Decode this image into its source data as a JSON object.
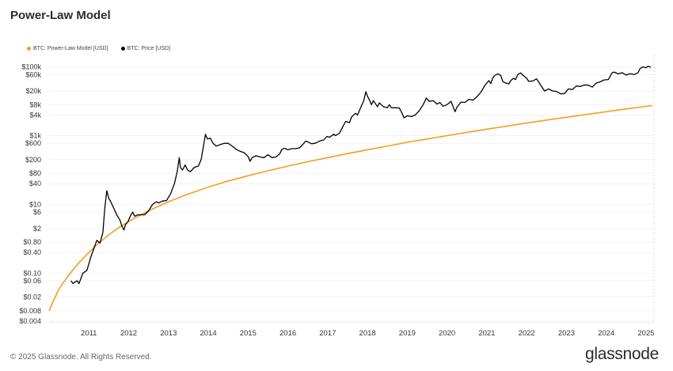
{
  "title": "Power-Law Model",
  "footer": "© 2025 Glassnode. All Rights Reserved.",
  "brand": "glassnode",
  "colors": {
    "model": "#F0A020",
    "price": "#000000",
    "grid": "#e6e6e6"
  },
  "chart_data": {
    "type": "line",
    "title": "Power-Law Model",
    "yscale": "log",
    "ylim": [
      0.004,
      150000
    ],
    "xlim": [
      2010.0,
      2025.2
    ],
    "legend": [
      {
        "name": "BTC: Power-Law Model [USD]",
        "color": "#F0A020",
        "marker": "dot"
      },
      {
        "name": "BTC: Price [USD]",
        "color": "#000000",
        "marker": "dot"
      }
    ],
    "legend_position": "top-left",
    "y_ticks": [
      {
        "v": 100000,
        "label": "$100k"
      },
      {
        "v": 60000,
        "label": "$60k"
      },
      {
        "v": 20000,
        "label": "$20k"
      },
      {
        "v": 8000,
        "label": "$8k"
      },
      {
        "v": 4000,
        "label": "$4k"
      },
      {
        "v": 1000,
        "label": "$1k"
      },
      {
        "v": 600,
        "label": "$600"
      },
      {
        "v": 200,
        "label": "$200"
      },
      {
        "v": 80,
        "label": "$80"
      },
      {
        "v": 40,
        "label": "$40"
      },
      {
        "v": 10,
        "label": "$10"
      },
      {
        "v": 6,
        "label": "$6"
      },
      {
        "v": 2,
        "label": "$2"
      },
      {
        "v": 0.8,
        "label": "$0.80"
      },
      {
        "v": 0.4,
        "label": "$0.40"
      },
      {
        "v": 0.1,
        "label": "$0.10"
      },
      {
        "v": 0.06,
        "label": "$0.06"
      },
      {
        "v": 0.02,
        "label": "$0.02"
      },
      {
        "v": 0.008,
        "label": "$0.008"
      },
      {
        "v": 0.004,
        "label": "$0.004"
      }
    ],
    "x_ticks": [
      {
        "v": 2011,
        "label": "2011"
      },
      {
        "v": 2012,
        "label": "2012"
      },
      {
        "v": 2013,
        "label": "2013"
      },
      {
        "v": 2014,
        "label": "2014"
      },
      {
        "v": 2015,
        "label": "2015"
      },
      {
        "v": 2016,
        "label": "2016"
      },
      {
        "v": 2017,
        "label": "2017"
      },
      {
        "v": 2018,
        "label": "2018"
      },
      {
        "v": 2019,
        "label": "2019"
      },
      {
        "v": 2020,
        "label": "2020"
      },
      {
        "v": 2021,
        "label": "2021"
      },
      {
        "v": 2022,
        "label": "2022"
      },
      {
        "v": 2023,
        "label": "2023"
      },
      {
        "v": 2024,
        "label": "2024"
      },
      {
        "v": 2025,
        "label": "2025"
      }
    ],
    "series": [
      {
        "name": "BTC: Power-Law Model [USD]",
        "color": "#F0A020",
        "points": [
          [
            2010.0,
            0.008
          ],
          [
            2010.1,
            0.015
          ],
          [
            2010.25,
            0.035
          ],
          [
            2010.5,
            0.09
          ],
          [
            2010.75,
            0.2
          ],
          [
            2011.0,
            0.4
          ],
          [
            2011.25,
            0.75
          ],
          [
            2011.5,
            1.3
          ],
          [
            2011.75,
            2.1
          ],
          [
            2012.0,
            3.2
          ],
          [
            2012.5,
            6.5
          ],
          [
            2013.0,
            12
          ],
          [
            2013.5,
            20
          ],
          [
            2014.0,
            32
          ],
          [
            2014.5,
            48
          ],
          [
            2015.0,
            68
          ],
          [
            2015.5,
            95
          ],
          [
            2016.0,
            130
          ],
          [
            2016.5,
            175
          ],
          [
            2017.0,
            230
          ],
          [
            2017.5,
            300
          ],
          [
            2018.0,
            390
          ],
          [
            2018.5,
            500
          ],
          [
            2019.0,
            640
          ],
          [
            2019.5,
            800
          ],
          [
            2020.0,
            1000
          ],
          [
            2020.5,
            1250
          ],
          [
            2021.0,
            1550
          ],
          [
            2021.5,
            1900
          ],
          [
            2022.0,
            2350
          ],
          [
            2022.5,
            2850
          ],
          [
            2023.0,
            3450
          ],
          [
            2023.5,
            4150
          ],
          [
            2024.0,
            5000
          ],
          [
            2024.5,
            6000
          ],
          [
            2025.15,
            7500
          ]
        ]
      },
      {
        "name": "BTC: Price [USD]",
        "color": "#000000",
        "points": [
          [
            2010.55,
            0.06
          ],
          [
            2010.6,
            0.05
          ],
          [
            2010.7,
            0.06
          ],
          [
            2010.75,
            0.05
          ],
          [
            2010.8,
            0.07
          ],
          [
            2010.85,
            0.1
          ],
          [
            2010.95,
            0.12
          ],
          [
            2011.05,
            0.3
          ],
          [
            2011.12,
            0.5
          ],
          [
            2011.2,
            0.9
          ],
          [
            2011.28,
            0.75
          ],
          [
            2011.35,
            1.5
          ],
          [
            2011.4,
            8
          ],
          [
            2011.45,
            25
          ],
          [
            2011.5,
            15
          ],
          [
            2011.55,
            12
          ],
          [
            2011.62,
            8
          ],
          [
            2011.7,
            5
          ],
          [
            2011.78,
            3.5
          ],
          [
            2011.82,
            2.5
          ],
          [
            2011.88,
            1.8
          ],
          [
            2011.92,
            2.6
          ],
          [
            2011.98,
            3.1
          ],
          [
            2012.05,
            4.8
          ],
          [
            2012.1,
            6.0
          ],
          [
            2012.15,
            4.5
          ],
          [
            2012.2,
            4.9
          ],
          [
            2012.3,
            5.0
          ],
          [
            2012.4,
            5.0
          ],
          [
            2012.5,
            6.5
          ],
          [
            2012.6,
            10
          ],
          [
            2012.65,
            11
          ],
          [
            2012.7,
            12
          ],
          [
            2012.75,
            11
          ],
          [
            2012.85,
            12.5
          ],
          [
            2012.95,
            13
          ],
          [
            2013.05,
            20
          ],
          [
            2013.15,
            40
          ],
          [
            2013.22,
            90
          ],
          [
            2013.27,
            230
          ],
          [
            2013.3,
            120
          ],
          [
            2013.35,
            100
          ],
          [
            2013.42,
            140
          ],
          [
            2013.48,
            100
          ],
          [
            2013.55,
            90
          ],
          [
            2013.65,
            120
          ],
          [
            2013.75,
            130
          ],
          [
            2013.82,
            200
          ],
          [
            2013.88,
            500
          ],
          [
            2013.93,
            1100
          ],
          [
            2013.98,
            800
          ],
          [
            2014.05,
            850
          ],
          [
            2014.12,
            600
          ],
          [
            2014.2,
            500
          ],
          [
            2014.3,
            550
          ],
          [
            2014.4,
            600
          ],
          [
            2014.5,
            600
          ],
          [
            2014.6,
            500
          ],
          [
            2014.7,
            400
          ],
          [
            2014.8,
            350
          ],
          [
            2014.9,
            320
          ],
          [
            2015.0,
            250
          ],
          [
            2015.05,
            180
          ],
          [
            2015.1,
            230
          ],
          [
            2015.2,
            260
          ],
          [
            2015.3,
            240
          ],
          [
            2015.4,
            230
          ],
          [
            2015.5,
            280
          ],
          [
            2015.6,
            230
          ],
          [
            2015.7,
            240
          ],
          [
            2015.8,
            300
          ],
          [
            2015.85,
            400
          ],
          [
            2015.92,
            430
          ],
          [
            2016.0,
            390
          ],
          [
            2016.1,
            420
          ],
          [
            2016.2,
            420
          ],
          [
            2016.3,
            450
          ],
          [
            2016.4,
            600
          ],
          [
            2016.45,
            700
          ],
          [
            2016.5,
            660
          ],
          [
            2016.6,
            580
          ],
          [
            2016.7,
            610
          ],
          [
            2016.8,
            700
          ],
          [
            2016.9,
            750
          ],
          [
            2016.98,
            950
          ],
          [
            2017.05,
            900
          ],
          [
            2017.15,
            1100
          ],
          [
            2017.2,
            1000
          ],
          [
            2017.3,
            1200
          ],
          [
            2017.4,
            2000
          ],
          [
            2017.45,
            2600
          ],
          [
            2017.5,
            2500
          ],
          [
            2017.55,
            2400
          ],
          [
            2017.6,
            3500
          ],
          [
            2017.7,
            4500
          ],
          [
            2017.75,
            4000
          ],
          [
            2017.8,
            5500
          ],
          [
            2017.85,
            7500
          ],
          [
            2017.9,
            10000
          ],
          [
            2017.96,
            19000
          ],
          [
            2018.0,
            14000
          ],
          [
            2018.05,
            11000
          ],
          [
            2018.1,
            8000
          ],
          [
            2018.15,
            10500
          ],
          [
            2018.25,
            7000
          ],
          [
            2018.3,
            9000
          ],
          [
            2018.4,
            7000
          ],
          [
            2018.5,
            6500
          ],
          [
            2018.55,
            8000
          ],
          [
            2018.6,
            6500
          ],
          [
            2018.7,
            6500
          ],
          [
            2018.8,
            6400
          ],
          [
            2018.87,
            4500
          ],
          [
            2018.92,
            3300
          ],
          [
            2019.0,
            3800
          ],
          [
            2019.1,
            3600
          ],
          [
            2019.2,
            4000
          ],
          [
            2019.3,
            5300
          ],
          [
            2019.4,
            8000
          ],
          [
            2019.48,
            12500
          ],
          [
            2019.55,
            10000
          ],
          [
            2019.65,
            10500
          ],
          [
            2019.75,
            8300
          ],
          [
            2019.82,
            9300
          ],
          [
            2019.9,
            7200
          ],
          [
            2020.0,
            8000
          ],
          [
            2020.1,
            10000
          ],
          [
            2020.2,
            5000
          ],
          [
            2020.25,
            6800
          ],
          [
            2020.35,
            9500
          ],
          [
            2020.45,
            9300
          ],
          [
            2020.55,
            11500
          ],
          [
            2020.65,
            10800
          ],
          [
            2020.75,
            13500
          ],
          [
            2020.85,
            18500
          ],
          [
            2020.95,
            29000
          ],
          [
            2021.05,
            40000
          ],
          [
            2021.1,
            33000
          ],
          [
            2021.15,
            48000
          ],
          [
            2021.2,
            57000
          ],
          [
            2021.28,
            63000
          ],
          [
            2021.35,
            56000
          ],
          [
            2021.4,
            38000
          ],
          [
            2021.45,
            35000
          ],
          [
            2021.55,
            32000
          ],
          [
            2021.6,
            40000
          ],
          [
            2021.67,
            47000
          ],
          [
            2021.72,
            43000
          ],
          [
            2021.78,
            61000
          ],
          [
            2021.85,
            67000
          ],
          [
            2021.92,
            56000
          ],
          [
            2022.0,
            47000
          ],
          [
            2022.05,
            38000
          ],
          [
            2022.15,
            39000
          ],
          [
            2022.25,
            45000
          ],
          [
            2022.35,
            30000
          ],
          [
            2022.45,
            20000
          ],
          [
            2022.55,
            23000
          ],
          [
            2022.65,
            20000
          ],
          [
            2022.75,
            19500
          ],
          [
            2022.85,
            16500
          ],
          [
            2022.95,
            16800
          ],
          [
            2023.05,
            23000
          ],
          [
            2023.15,
            22000
          ],
          [
            2023.25,
            28000
          ],
          [
            2023.35,
            27000
          ],
          [
            2023.45,
            30000
          ],
          [
            2023.55,
            29500
          ],
          [
            2023.65,
            26000
          ],
          [
            2023.75,
            34000
          ],
          [
            2023.85,
            37000
          ],
          [
            2023.95,
            42000
          ],
          [
            2024.05,
            43000
          ],
          [
            2024.15,
            68000
          ],
          [
            2024.2,
            71000
          ],
          [
            2024.3,
            63000
          ],
          [
            2024.4,
            68000
          ],
          [
            2024.5,
            58000
          ],
          [
            2024.6,
            64000
          ],
          [
            2024.7,
            60000
          ],
          [
            2024.8,
            68000
          ],
          [
            2024.85,
            90000
          ],
          [
            2024.92,
            100000
          ],
          [
            2025.0,
            95000
          ],
          [
            2025.05,
            105000
          ],
          [
            2025.12,
            98000
          ]
        ]
      }
    ]
  }
}
